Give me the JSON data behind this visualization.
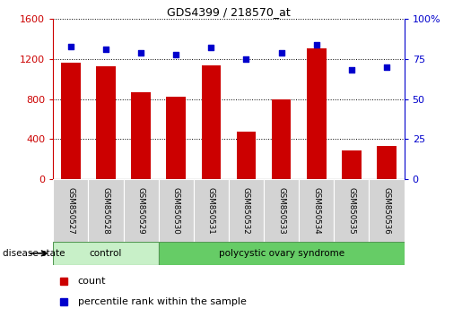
{
  "title": "GDS4399 / 218570_at",
  "samples": [
    "GSM850527",
    "GSM850528",
    "GSM850529",
    "GSM850530",
    "GSM850531",
    "GSM850532",
    "GSM850533",
    "GSM850534",
    "GSM850535",
    "GSM850536"
  ],
  "counts": [
    1160,
    1130,
    870,
    820,
    1140,
    470,
    800,
    1310,
    290,
    330
  ],
  "percentiles": [
    83,
    81,
    79,
    78,
    82,
    75,
    79,
    84,
    68,
    70
  ],
  "ylim_left": [
    0,
    1600
  ],
  "ylim_right": [
    0,
    100
  ],
  "yticks_left": [
    0,
    400,
    800,
    1200,
    1600
  ],
  "yticks_right": [
    0,
    25,
    50,
    75,
    100
  ],
  "bar_color": "#cc0000",
  "scatter_color": "#0000cc",
  "grid_color": "#000000",
  "control_count": 3,
  "pcos_count": 7,
  "control_label": "control",
  "pcos_label": "polycystic ovary syndrome",
  "disease_state_label": "disease state",
  "control_color": "#c8f0c8",
  "pcos_color": "#66cc66",
  "label_box_color": "#d3d3d3",
  "legend_count_label": "count",
  "legend_percentile_label": "percentile rank within the sample",
  "bar_width": 0.55
}
